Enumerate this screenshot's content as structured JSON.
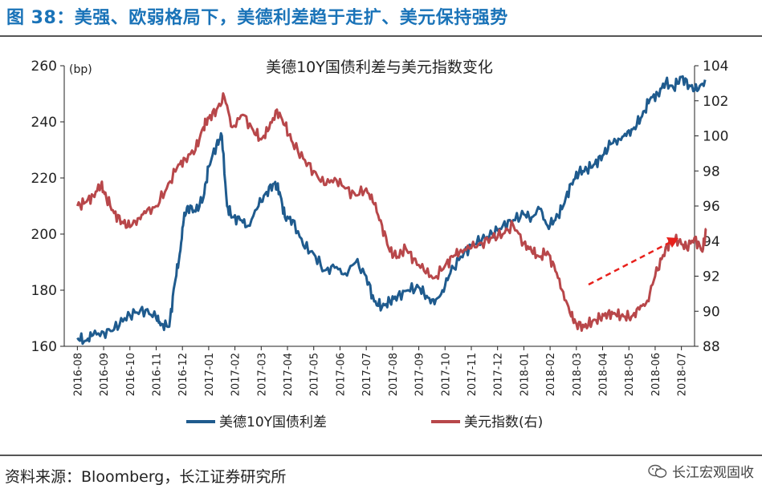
{
  "figure_title": "图 38：美强、欧弱格局下，美德利差趋于走扩、美元保持强势",
  "source": "资料来源：Bloomberg，长江证券研究所",
  "watermark": "长江宏观固收",
  "colors": {
    "title": "#1a73b8",
    "series1": "#1f5b8e",
    "series2": "#b8474a",
    "arrow": "#e8201b",
    "axis": "#222222"
  },
  "chart_data": {
    "type": "line",
    "title": "美德10Y国债利差与美元指数变化",
    "left_unit": "(bp)",
    "ylim": [
      160,
      260
    ],
    "y_ticks": [
      160,
      180,
      200,
      220,
      240,
      260
    ],
    "y2lim": [
      88,
      104
    ],
    "y2_ticks": [
      88,
      90,
      92,
      94,
      96,
      98,
      100,
      102,
      104
    ],
    "categories": [
      "2016-08",
      "2016-09",
      "2016-10",
      "2016-11",
      "2016-12",
      "2017-01",
      "2017-02",
      "2017-03",
      "2017-04",
      "2017-05",
      "2017-06",
      "2017-07",
      "2017-08",
      "2017-09",
      "2017-10",
      "2017-11",
      "2017-12",
      "2018-01",
      "2018-02",
      "2018-03",
      "2018-04",
      "2018-05",
      "2018-06",
      "2018-07"
    ],
    "series": [
      {
        "name": "美德10Y国债利差",
        "axis": "left",
        "color": "#1f5b8e",
        "x": [
          0,
          0.3,
          0.6,
          1.0,
          1.4,
          1.8,
          2.2,
          2.6,
          3.0,
          3.2,
          3.5,
          3.7,
          3.9,
          4.05,
          4.2,
          4.5,
          4.8,
          5.0,
          5.3,
          5.5,
          5.7,
          5.9,
          6.2,
          6.5,
          6.9,
          7.2,
          7.5,
          7.7,
          7.9,
          8.2,
          8.6,
          9.0,
          9.4,
          9.8,
          10.2,
          10.6,
          11.0,
          11.3,
          11.6,
          11.9,
          12.2,
          12.6,
          13.0,
          13.3,
          13.6,
          13.9,
          14.2,
          14.6,
          15.0,
          15.4,
          15.8,
          16.2,
          16.6,
          17.0,
          17.3,
          17.6,
          17.9,
          18.2,
          18.5,
          18.8,
          19.1,
          19.4,
          19.7,
          20.0,
          20.3,
          20.6,
          20.9,
          21.2,
          21.5,
          21.8,
          22.1,
          22.4,
          22.7,
          23.0,
          23.3,
          23.6,
          23.9
        ],
        "values": [
          163,
          162,
          164,
          165,
          166,
          170,
          172,
          173,
          170,
          168,
          167,
          182,
          193,
          205,
          210,
          208,
          213,
          224,
          232,
          235,
          210,
          206,
          205,
          203,
          210,
          215,
          218,
          215,
          206,
          205,
          196,
          193,
          187,
          188,
          186,
          190,
          185,
          176,
          174,
          176,
          178,
          180,
          181,
          178,
          175,
          180,
          186,
          192,
          196,
          198,
          200,
          203,
          205,
          207,
          206,
          209,
          203,
          205,
          210,
          218,
          222,
          223,
          225,
          228,
          232,
          234,
          235,
          238,
          242,
          248,
          250,
          254,
          252,
          256,
          253,
          251,
          255
        ]
      },
      {
        "name": "美元指数(右)",
        "axis": "right",
        "color": "#b8474a",
        "x": [
          0,
          0.3,
          0.6,
          0.9,
          1.1,
          1.4,
          1.7,
          2.0,
          2.3,
          2.6,
          3.0,
          3.4,
          3.8,
          4.1,
          4.5,
          4.8,
          5.0,
          5.3,
          5.6,
          5.9,
          6.3,
          6.7,
          7.0,
          7.3,
          7.6,
          7.9,
          8.2,
          8.6,
          9.0,
          9.4,
          9.8,
          10.2,
          10.6,
          11.0,
          11.3,
          11.6,
          11.9,
          12.2,
          12.5,
          12.8,
          13.2,
          13.6,
          14.0,
          14.3,
          14.6,
          15.0,
          15.4,
          15.8,
          16.2,
          16.6,
          17.0,
          17.3,
          17.6,
          17.9,
          18.2,
          18.5,
          18.8,
          19.0,
          19.3,
          19.6,
          19.9,
          20.2,
          20.5,
          20.8,
          21.1,
          21.4,
          21.7,
          22.0,
          22.3,
          22.6,
          22.9,
          23.2,
          23.5,
          23.8,
          23.95
        ],
        "values": [
          96.0,
          96.2,
          96.6,
          97.2,
          96.5,
          95.6,
          95.1,
          94.8,
          95.3,
          95.6,
          96.0,
          97.0,
          98.2,
          98.7,
          99.2,
          100.5,
          101.0,
          101.5,
          102.2,
          100.5,
          101.2,
          100.3,
          99.8,
          100.4,
          101.5,
          100.6,
          99.6,
          98.7,
          98.0,
          97.2,
          97.6,
          97.0,
          96.6,
          97.0,
          96.1,
          94.9,
          93.4,
          93.1,
          93.6,
          93.0,
          92.3,
          91.9,
          92.6,
          93.1,
          93.5,
          93.6,
          93.9,
          94.2,
          94.4,
          94.9,
          93.9,
          93.4,
          93.1,
          93.4,
          92.3,
          91.1,
          89.7,
          89.3,
          89.1,
          89.4,
          89.6,
          89.9,
          89.8,
          89.7,
          89.7,
          90.1,
          90.6,
          92.0,
          93.2,
          94.1,
          94.0,
          93.6,
          94.2,
          93.4,
          94.7
        ]
      }
    ],
    "annotation": "trend-arrow"
  }
}
